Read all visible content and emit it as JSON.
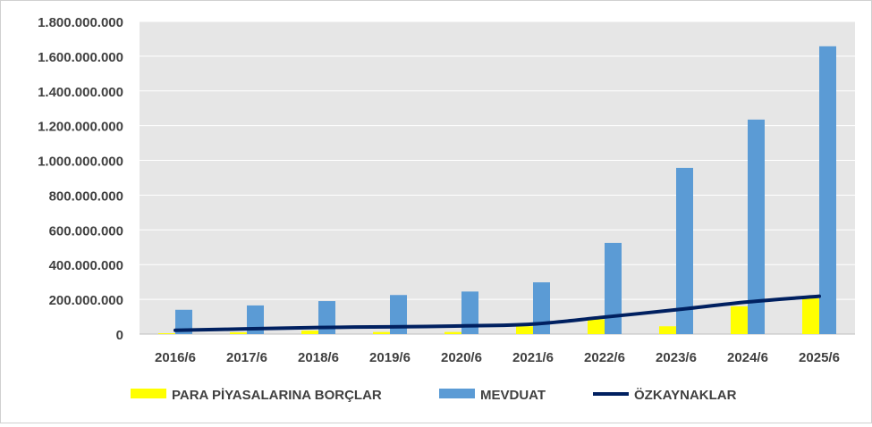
{
  "chart_data": {
    "type": "bar",
    "categories": [
      "2016/6",
      "2017/6",
      "2018/6",
      "2019/6",
      "2020/6",
      "2021/6",
      "2022/6",
      "2023/6",
      "2024/6",
      "2025/6"
    ],
    "series": [
      {
        "name": "PARA PİYASALARINA BORÇLAR",
        "kind": "bar",
        "color": "#FFFF00",
        "values": [
          5000000,
          10000000,
          20000000,
          12000000,
          12000000,
          45000000,
          85000000,
          45000000,
          160000000,
          205000000
        ]
      },
      {
        "name": "MEVDUAT",
        "kind": "bar",
        "color": "#5B9BD5",
        "values": [
          140000000,
          165000000,
          190000000,
          225000000,
          245000000,
          298000000,
          525000000,
          957000000,
          1235000000,
          1657000000
        ]
      },
      {
        "name": "ÖZKAYNAKLAR",
        "kind": "line",
        "color": "#002060",
        "values": [
          22000000,
          30000000,
          38000000,
          42000000,
          47000000,
          58000000,
          98000000,
          140000000,
          185000000,
          218000000
        ]
      }
    ],
    "ylim": [
      0,
      1800000000
    ],
    "yticks": [
      "0",
      "200.000.000",
      "400.000.000",
      "600.000.000",
      "800.000.000",
      "1.000.000.000",
      "1.200.000.000",
      "1.400.000.000",
      "1.600.000.000",
      "1.800.000.000"
    ],
    "grid": true,
    "legend_position": "bottom",
    "plot_background": "#E6E6E6"
  }
}
